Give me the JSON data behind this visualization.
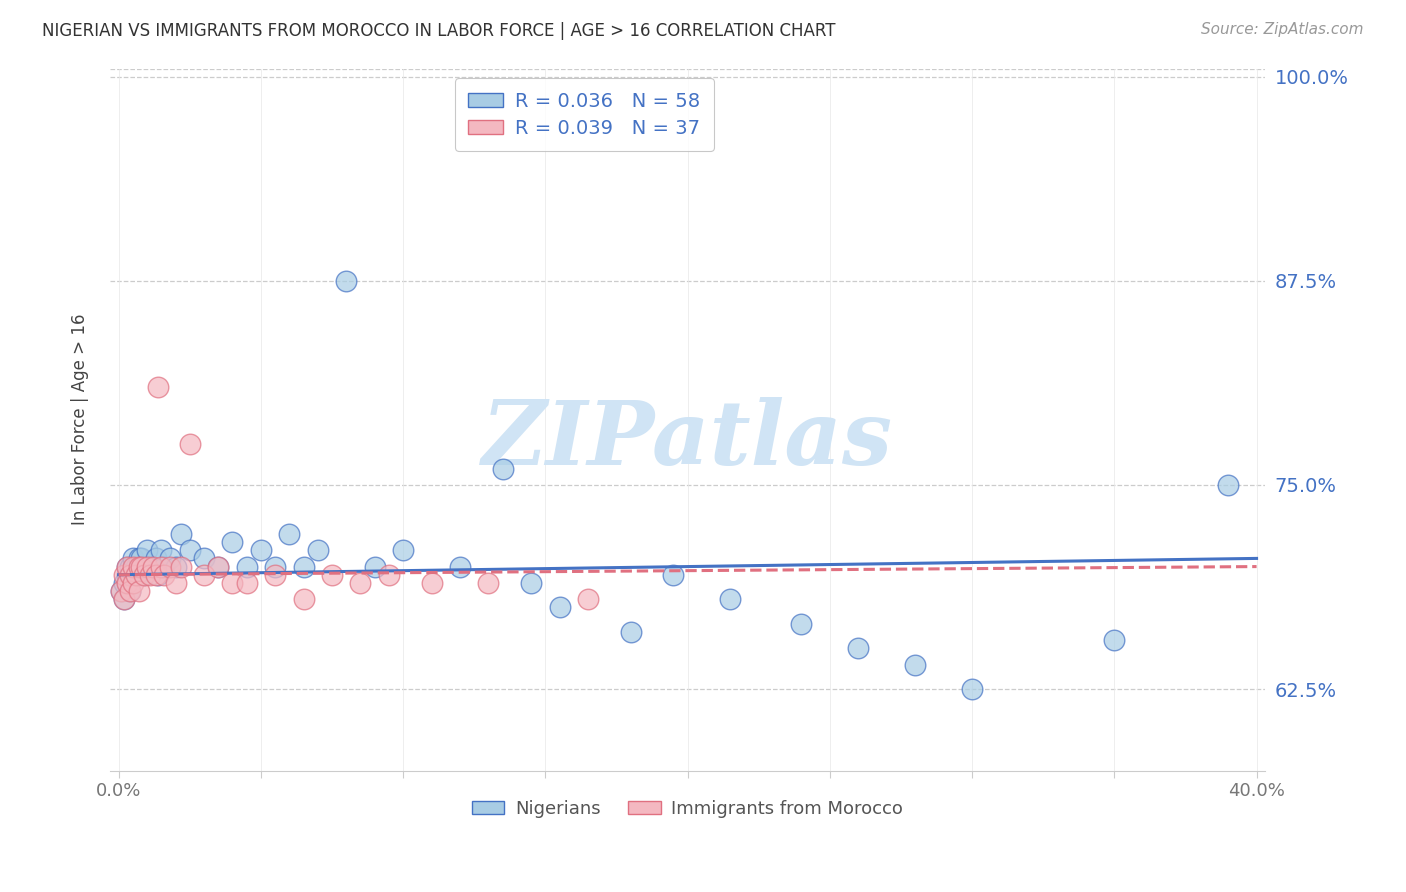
{
  "title": "NIGERIAN VS IMMIGRANTS FROM MOROCCO IN LABOR FORCE | AGE > 16 CORRELATION CHART",
  "source": "Source: ZipAtlas.com",
  "ylabel": "In Labor Force | Age > 16",
  "xlim": [
    -0.003,
    0.403
  ],
  "ylim": [
    0.575,
    1.005
  ],
  "yticks": [
    0.625,
    0.75,
    0.875,
    1.0
  ],
  "ytick_labels": [
    "62.5%",
    "75.0%",
    "87.5%",
    "100.0%"
  ],
  "xtick_positions": [
    0.0,
    0.4
  ],
  "xtick_labels": [
    "0.0%",
    "40.0%"
  ],
  "nigerians_label": "Nigerians",
  "morocco_label": "Immigrants from Morocco",
  "nigerian_R": "0.036",
  "nigerian_N": "58",
  "morocco_R": "0.039",
  "morocco_N": "37",
  "nigerian_color": "#a8cce4",
  "morocco_color": "#f4b8c1",
  "nigerian_edge_color": "#4472c4",
  "morocco_edge_color": "#e07080",
  "nigerian_line_color": "#4472c4",
  "morocco_line_color": "#e07080",
  "watermark": "ZIPatlas",
  "watermark_color": "#d0e4f5",
  "legend_text_color": "#4472c4",
  "nigerian_x": [
    0.001,
    0.002,
    0.002,
    0.003,
    0.003,
    0.003,
    0.004,
    0.004,
    0.004,
    0.005,
    0.005,
    0.005,
    0.006,
    0.006,
    0.007,
    0.007,
    0.007,
    0.008,
    0.008,
    0.009,
    0.009,
    0.01,
    0.01,
    0.011,
    0.012,
    0.013,
    0.014,
    0.015,
    0.016,
    0.018,
    0.02,
    0.022,
    0.025,
    0.03,
    0.035,
    0.04,
    0.045,
    0.05,
    0.055,
    0.06,
    0.065,
    0.07,
    0.08,
    0.09,
    0.1,
    0.12,
    0.135,
    0.145,
    0.155,
    0.18,
    0.195,
    0.215,
    0.24,
    0.26,
    0.28,
    0.3,
    0.35,
    0.39
  ],
  "nigerian_y": [
    0.685,
    0.68,
    0.69,
    0.695,
    0.7,
    0.69,
    0.7,
    0.695,
    0.685,
    0.7,
    0.695,
    0.705,
    0.7,
    0.695,
    0.7,
    0.705,
    0.695,
    0.7,
    0.705,
    0.695,
    0.7,
    0.7,
    0.71,
    0.7,
    0.7,
    0.705,
    0.695,
    0.71,
    0.7,
    0.705,
    0.7,
    0.72,
    0.71,
    0.705,
    0.7,
    0.715,
    0.7,
    0.71,
    0.7,
    0.72,
    0.7,
    0.71,
    0.875,
    0.7,
    0.71,
    0.7,
    0.76,
    0.69,
    0.675,
    0.66,
    0.695,
    0.68,
    0.665,
    0.65,
    0.64,
    0.625,
    0.655,
    0.75
  ],
  "morocco_x": [
    0.001,
    0.002,
    0.002,
    0.003,
    0.003,
    0.004,
    0.004,
    0.005,
    0.005,
    0.006,
    0.007,
    0.007,
    0.008,
    0.009,
    0.01,
    0.011,
    0.012,
    0.013,
    0.014,
    0.015,
    0.016,
    0.018,
    0.02,
    0.022,
    0.025,
    0.03,
    0.035,
    0.04,
    0.045,
    0.055,
    0.065,
    0.075,
    0.085,
    0.095,
    0.11,
    0.13,
    0.165
  ],
  "morocco_y": [
    0.685,
    0.68,
    0.695,
    0.69,
    0.7,
    0.695,
    0.685,
    0.69,
    0.7,
    0.695,
    0.7,
    0.685,
    0.7,
    0.695,
    0.7,
    0.695,
    0.7,
    0.695,
    0.81,
    0.7,
    0.695,
    0.7,
    0.69,
    0.7,
    0.775,
    0.695,
    0.7,
    0.69,
    0.69,
    0.695,
    0.68,
    0.695,
    0.69,
    0.695,
    0.69,
    0.69,
    0.68
  ],
  "grid_color": "#cccccc",
  "spine_color": "#cccccc",
  "tick_color": "#777777"
}
